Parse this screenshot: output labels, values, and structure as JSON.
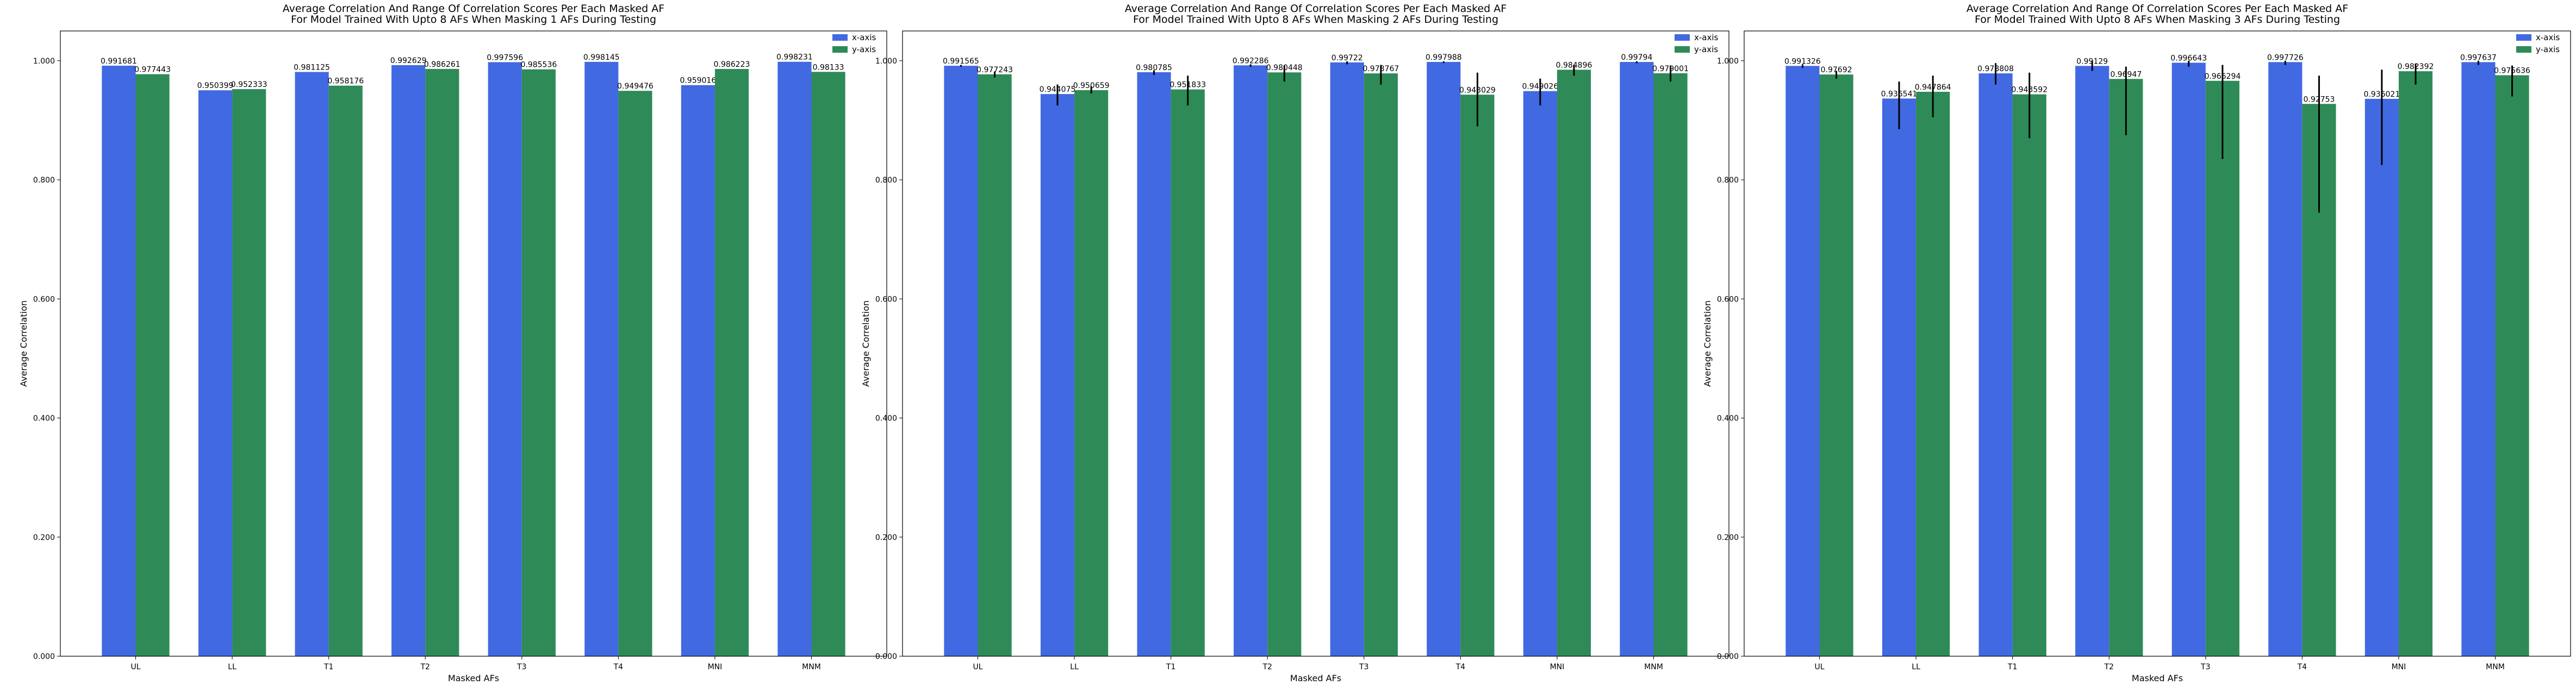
{
  "colors": {
    "x_series": "#4169e1",
    "y_series": "#2e8b57",
    "axis": "#000000",
    "error": "#000000"
  },
  "chart_data": [
    {
      "type": "bar",
      "title": "Average Correlation And Range Of Correlation Scores Per Each Masked AF\nFor Model Trained With Upto 8 AFs When Masking 1 AFs During Testing",
      "xlabel": "Masked AFs",
      "ylabel": "Average Correlation",
      "ylim": [
        0,
        1.05
      ],
      "yticks": [
        0.0,
        0.2,
        0.4,
        0.6,
        0.8,
        1.0
      ],
      "ytick_labels": [
        "0.000",
        "0.200",
        "0.400",
        "0.600",
        "0.800",
        "1.000"
      ],
      "legend_position": "top-right",
      "categories": [
        "UL",
        "LL",
        "T1",
        "T2",
        "T3",
        "T4",
        "MNI",
        "MNM"
      ],
      "series": [
        {
          "name": "x-axis",
          "values": [
            0.991681,
            0.950399,
            0.981125,
            0.992629,
            0.997596,
            0.998145,
            0.959016,
            0.998231
          ],
          "labels": [
            "0.991681",
            "0.950399",
            "0.981125",
            "0.992629",
            "0.997596",
            "0.998145",
            "0.959016",
            "0.998231"
          ],
          "error_low": [
            0.991681,
            0.950399,
            0.981125,
            0.992629,
            0.997596,
            0.998145,
            0.959016,
            0.998231
          ],
          "error_high": [
            0.991681,
            0.950399,
            0.981125,
            0.992629,
            0.997596,
            0.998145,
            0.959016,
            0.998231
          ]
        },
        {
          "name": "y-axis",
          "values": [
            0.977443,
            0.952333,
            0.958176,
            0.986261,
            0.985536,
            0.949476,
            0.986223,
            0.98133
          ],
          "labels": [
            "0.977443",
            "0.952333",
            "0.958176",
            "0.986261",
            "0.985536",
            "0.949476",
            "0.986223",
            "0.98133"
          ],
          "error_low": [
            0.977443,
            0.952333,
            0.958176,
            0.986261,
            0.985536,
            0.949476,
            0.986223,
            0.98133
          ],
          "error_high": [
            0.977443,
            0.952333,
            0.958176,
            0.986261,
            0.985536,
            0.949476,
            0.986223,
            0.98133
          ]
        }
      ]
    },
    {
      "type": "bar",
      "title": "Average Correlation And Range Of Correlation Scores Per Each Masked AF\nFor Model Trained With Upto 8 AFs When Masking 2 AFs During Testing",
      "xlabel": "Masked AFs",
      "ylabel": "Average Correlation",
      "ylim": [
        0,
        1.05
      ],
      "yticks": [
        0.0,
        0.2,
        0.4,
        0.6,
        0.8,
        1.0
      ],
      "ytick_labels": [
        "0.000",
        "0.200",
        "0.400",
        "0.600",
        "0.800",
        "1.000"
      ],
      "legend_position": "top-right",
      "categories": [
        "UL",
        "LL",
        "T1",
        "T2",
        "T3",
        "T4",
        "MNI",
        "MNM"
      ],
      "series": [
        {
          "name": "x-axis",
          "values": [
            0.991565,
            0.944075,
            0.980785,
            0.992286,
            0.99722,
            0.997988,
            0.949026,
            0.99794
          ],
          "labels": [
            "0.991565",
            "0.944075",
            "0.980785",
            "0.992286",
            "0.99722",
            "0.997988",
            "0.949026",
            "0.99794"
          ],
          "error_low": [
            0.99,
            0.925,
            0.976,
            0.99,
            0.994,
            0.996,
            0.925,
            0.996
          ],
          "error_high": [
            0.993,
            0.96,
            0.984,
            0.994,
            0.999,
            0.999,
            0.97,
            0.999
          ]
        },
        {
          "name": "y-axis",
          "values": [
            0.977243,
            0.950659,
            0.951833,
            0.980448,
            0.978767,
            0.943029,
            0.984896,
            0.979001
          ],
          "labels": [
            "0.977243",
            "0.950659",
            "0.951833",
            "0.980448",
            "0.978767",
            "0.943029",
            "0.984896",
            "0.979001"
          ],
          "error_low": [
            0.972,
            0.945,
            0.925,
            0.965,
            0.96,
            0.89,
            0.975,
            0.965
          ],
          "error_high": [
            0.982,
            0.957,
            0.975,
            0.992,
            0.993,
            0.98,
            0.993,
            0.992
          ]
        }
      ]
    },
    {
      "type": "bar",
      "title": "Average Correlation And Range Of Correlation Scores Per Each Masked AF\nFor Model Trained With Upto 8 AFs When Masking 3 AFs During Testing",
      "xlabel": "Masked AFs",
      "ylabel": "Average Correlation",
      "ylim": [
        0,
        1.05
      ],
      "yticks": [
        0.0,
        0.2,
        0.4,
        0.6,
        0.8,
        1.0
      ],
      "ytick_labels": [
        "0.000",
        "0.200",
        "0.400",
        "0.600",
        "0.800",
        "1.000"
      ],
      "legend_position": "top-right",
      "categories": [
        "UL",
        "LL",
        "T1",
        "T2",
        "T3",
        "T4",
        "MNI",
        "MNM"
      ],
      "series": [
        {
          "name": "x-axis",
          "values": [
            0.991326,
            0.936541,
            0.978808,
            0.99129,
            0.996643,
            0.997726,
            0.936021,
            0.997637
          ],
          "labels": [
            "0.991326",
            "0.936541",
            "0.978808",
            "0.99129",
            "0.996643",
            "0.997726",
            "0.936021",
            "0.997637"
          ],
          "error_low": [
            0.988,
            0.885,
            0.96,
            0.983,
            0.99,
            0.993,
            0.825,
            0.993
          ],
          "error_high": [
            0.994,
            0.965,
            0.996,
            1.0,
            1.0,
            1.0,
            0.985,
            1.0
          ]
        },
        {
          "name": "y-axis",
          "values": [
            0.97692,
            0.947864,
            0.943592,
            0.96947,
            0.966294,
            0.92753,
            0.982392,
            0.975636
          ],
          "labels": [
            "0.97692",
            "0.947864",
            "0.943592",
            "0.96947",
            "0.966294",
            "0.92753",
            "0.982392",
            "0.975636"
          ],
          "error_low": [
            0.97,
            0.905,
            0.87,
            0.875,
            0.835,
            0.745,
            0.96,
            0.94
          ],
          "error_high": [
            0.983,
            0.975,
            0.98,
            0.99,
            0.993,
            0.975,
            0.995,
            0.992
          ]
        }
      ]
    }
  ]
}
